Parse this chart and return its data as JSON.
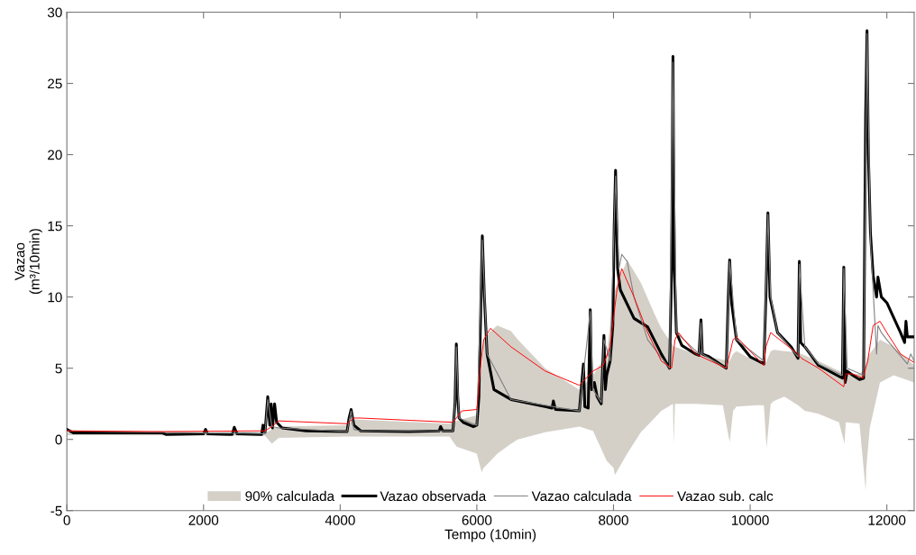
{
  "chart_data": {
    "type": "line",
    "xlabel": "Tempo (10min)",
    "ylabel": "Vazao\n(m³/10min)",
    "xlim": [
      0,
      12400
    ],
    "ylim": [
      -5,
      30
    ],
    "xticks": [
      0,
      2000,
      4000,
      6000,
      8000,
      10000,
      12000
    ],
    "yticks": [
      -5,
      0,
      5,
      10,
      15,
      20,
      25,
      30
    ],
    "grid": false,
    "legend": "bottom",
    "marker": "none",
    "line_style": "solid",
    "series": [
      {
        "name": "90% calculada",
        "color": "#d4d0c8",
        "x": [
          0,
          2900,
          3000,
          3100,
          4100,
          4200,
          5600,
          5700,
          6000,
          6070,
          6100,
          6200,
          6300,
          6500,
          6600,
          7000,
          7500,
          7700,
          7900,
          8000,
          8020,
          8200,
          8400,
          8600,
          8700,
          8870,
          8880,
          8900,
          9200,
          9600,
          9700,
          9750,
          9800,
          10100,
          10200,
          10240,
          10300,
          10350,
          10500,
          10700,
          10800,
          11000,
          11300,
          11380,
          11400,
          11420,
          11600,
          11690,
          11700,
          11750,
          11900,
          12100,
          12400
        ],
        "values": [
          null,
          null,
          null,
          null,
          null,
          null,
          null,
          null,
          null,
          null,
          null,
          null,
          null,
          null,
          null,
          null,
          null,
          null,
          null,
          null,
          null,
          null,
          null,
          null,
          null,
          null,
          null,
          null,
          null,
          null,
          null,
          null,
          null,
          null,
          null,
          null,
          null,
          null,
          null,
          null,
          null,
          null,
          null,
          null,
          null,
          null,
          null,
          null,
          null,
          null,
          null,
          null,
          null
        ],
        "upper": [
          0.45,
          0.45,
          0.7,
          0.9,
          1.0,
          1.4,
          1.1,
          1.3,
          1.7,
          5.0,
          7.0,
          7.6,
          8.0,
          7.6,
          7.0,
          5.0,
          3.5,
          4.5,
          6.0,
          10.0,
          10.5,
          12.6,
          11.0,
          8.8,
          7.8,
          6.6,
          6.5,
          6.5,
          6.0,
          5.6,
          5.5,
          6.0,
          6.2,
          5.4,
          5.2,
          5.5,
          6.2,
          6.3,
          6.2,
          6.1,
          5.9,
          5.5,
          4.8,
          4.6,
          4.6,
          4.6,
          4.6,
          5.0,
          5.5,
          6.0,
          7.0,
          6.5,
          5.2
        ],
        "lower": [
          0.3,
          0.25,
          -0.3,
          0.1,
          0.2,
          0.2,
          0.2,
          -0.5,
          -1.0,
          -2.3,
          -2.0,
          -1.5,
          -1.0,
          -0.3,
          0.0,
          0.5,
          0.9,
          0.6,
          -1.5,
          -2.0,
          -2.5,
          -1.0,
          0.5,
          1.5,
          2.0,
          2.5,
          -0.3,
          2.5,
          2.5,
          2.4,
          -0.2,
          2.0,
          2.3,
          2.4,
          2.4,
          -0.6,
          2.5,
          2.7,
          3.0,
          2.4,
          2.0,
          1.8,
          1.2,
          -0.3,
          1.2,
          1.2,
          1.1,
          -3.6,
          -2.0,
          0.8,
          4.0,
          4.5,
          4.0
        ]
      },
      {
        "name": "Vazao observada",
        "color": "#000000",
        "x": [
          0,
          100,
          1400,
          1450,
          2000,
          2030,
          2060,
          2420,
          2450,
          2490,
          2850,
          2870,
          2900,
          2940,
          2970,
          2990,
          3010,
          3040,
          3070,
          3150,
          3500,
          4100,
          4130,
          4160,
          4200,
          4300,
          5000,
          5450,
          5470,
          5500,
          5650,
          5680,
          5700,
          5720,
          5740,
          5800,
          5950,
          6000,
          6030,
          6080,
          6110,
          6150,
          6250,
          6500,
          7000,
          7100,
          7120,
          7150,
          7500,
          7560,
          7580,
          7630,
          7660,
          7680,
          7720,
          7760,
          7820,
          7860,
          7880,
          7900,
          7950,
          7990,
          8010,
          8030,
          8060,
          8100,
          8300,
          8500,
          8700,
          8820,
          8850,
          8870,
          8890,
          8920,
          9000,
          9200,
          9250,
          9280,
          9300,
          9400,
          9650,
          9680,
          9700,
          9730,
          9800,
          10000,
          10200,
          10230,
          10260,
          10290,
          10400,
          10600,
          10700,
          10720,
          10740,
          10800,
          11000,
          11350,
          11370,
          11390,
          11420,
          11500,
          11600,
          11660,
          11690,
          11710,
          11730,
          11760,
          11800,
          11850,
          11870,
          11920,
          12000,
          12200,
          12260,
          12280,
          12300,
          12400
        ],
        "values": [
          0.7,
          0.45,
          0.45,
          0.35,
          0.4,
          0.7,
          0.4,
          0.35,
          0.85,
          0.4,
          0.35,
          1.0,
          0.5,
          3.0,
          1.0,
          2.5,
          0.8,
          2.5,
          1.2,
          0.8,
          0.6,
          0.55,
          1.5,
          2.1,
          1.0,
          0.6,
          0.55,
          0.6,
          0.9,
          0.6,
          0.6,
          2.5,
          6.7,
          3.0,
          1.5,
          1.2,
          0.9,
          1.0,
          3.0,
          14.3,
          10.0,
          6.0,
          3.5,
          2.8,
          2.3,
          2.2,
          2.7,
          2.1,
          2.0,
          5.3,
          2.3,
          2.2,
          9.1,
          3.5,
          4.0,
          3.0,
          2.5,
          7.3,
          3.5,
          4.5,
          5.5,
          8.0,
          15.0,
          18.9,
          12.0,
          10.5,
          8.5,
          7.9,
          6.0,
          5.0,
          12.0,
          26.9,
          12.0,
          7.5,
          6.6,
          6.0,
          5.9,
          8.4,
          6.0,
          5.8,
          5.0,
          10.0,
          12.6,
          9.5,
          7.0,
          5.8,
          5.3,
          10.0,
          15.9,
          10.0,
          7.5,
          6.5,
          5.7,
          12.5,
          6.8,
          6.5,
          5.2,
          4.3,
          12.1,
          4.0,
          4.8,
          4.5,
          4.2,
          4.3,
          22.8,
          28.7,
          20.0,
          14.5,
          11.5,
          10.0,
          11.4,
          10.0,
          9.6,
          7.5,
          6.8,
          8.3,
          7.2,
          7.2
        ]
      },
      {
        "name": "Vazao calculada",
        "color": "#808080",
        "x": [
          0,
          2900,
          2940,
          3000,
          3100,
          4100,
          4160,
          4200,
          4300,
          5650,
          5680,
          5700,
          5740,
          6000,
          6080,
          6150,
          6500,
          7500,
          7660,
          7700,
          7820,
          7860,
          7950,
          8030,
          8080,
          8120,
          8200,
          8300,
          8500,
          8820,
          8870,
          8920,
          9250,
          9280,
          9300,
          9650,
          9700,
          9800,
          10200,
          10260,
          10300,
          10400,
          10700,
          10720,
          10800,
          11000,
          11350,
          11370,
          11420,
          11660,
          11710,
          11760,
          11850,
          11870,
          11920,
          12000,
          12300,
          12350,
          12400
        ],
        "values": [
          0.6,
          0.4,
          2.8,
          0.9,
          0.8,
          0.55,
          2.0,
          0.7,
          0.6,
          0.6,
          2.5,
          6.5,
          1.5,
          1.0,
          14.0,
          6.0,
          2.8,
          2.0,
          9.0,
          3.5,
          2.6,
          7.0,
          5.5,
          18.5,
          12.0,
          13.0,
          12.5,
          10.0,
          7.0,
          5.0,
          26.5,
          7.5,
          6.0,
          8.2,
          6.0,
          5.0,
          12.5,
          7.0,
          5.5,
          15.8,
          10.0,
          7.5,
          5.8,
          12.3,
          6.5,
          5.3,
          4.5,
          12.0,
          5.0,
          4.5,
          28.5,
          14.0,
          6.0,
          8.0,
          7.5,
          7.0,
          5.3,
          6.0,
          5.5
        ]
      },
      {
        "name": "Vazao sub. calc",
        "color": "#ff0000",
        "x": [
          0,
          1400,
          2900,
          3000,
          3100,
          4100,
          4200,
          4300,
          5650,
          5700,
          5780,
          6000,
          6050,
          6100,
          6200,
          6500,
          7000,
          7500,
          7600,
          7700,
          7850,
          7950,
          8050,
          8120,
          8300,
          8500,
          8700,
          8850,
          8900,
          8950,
          9200,
          9650,
          9750,
          9800,
          10200,
          10230,
          10300,
          10700,
          10750,
          11000,
          11370,
          11400,
          11500,
          11650,
          11720,
          11800,
          11900,
          12000,
          12200,
          12400
        ],
        "values": [
          0.6,
          0.55,
          0.6,
          0.9,
          1.3,
          1.1,
          1.5,
          1.5,
          1.2,
          1.5,
          2.0,
          2.1,
          5.0,
          7.0,
          7.8,
          6.5,
          4.8,
          3.8,
          4.3,
          4.8,
          5.2,
          6.5,
          10.5,
          12.0,
          10.0,
          7.5,
          5.5,
          5.0,
          7.0,
          7.5,
          6.0,
          5.0,
          7.0,
          7.2,
          5.2,
          6.5,
          7.5,
          6.0,
          5.7,
          5.0,
          3.7,
          4.6,
          4.6,
          4.3,
          5.5,
          8.0,
          8.3,
          7.5,
          6.0,
          5.4
        ]
      }
    ]
  }
}
